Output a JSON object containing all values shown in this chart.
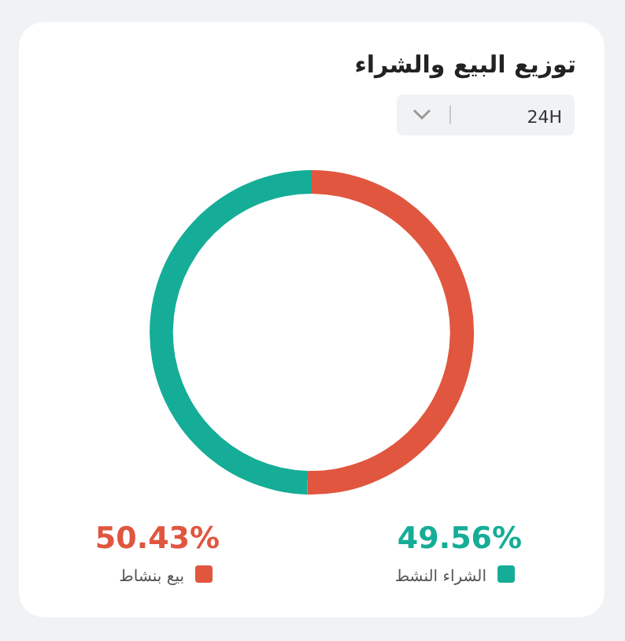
{
  "chart_data": {
    "type": "donut",
    "title": "توزيع البيع والشراء",
    "categories": [
      "بيع بنشاط",
      "الشراء النشط"
    ],
    "values": [
      50.43,
      49.56
    ],
    "colors": [
      "#e0563f",
      "#15ad97"
    ],
    "value_labels": [
      "50.43%",
      "49.56%"
    ],
    "legend": "bottom",
    "annotations": [
      "24H"
    ]
  }
}
